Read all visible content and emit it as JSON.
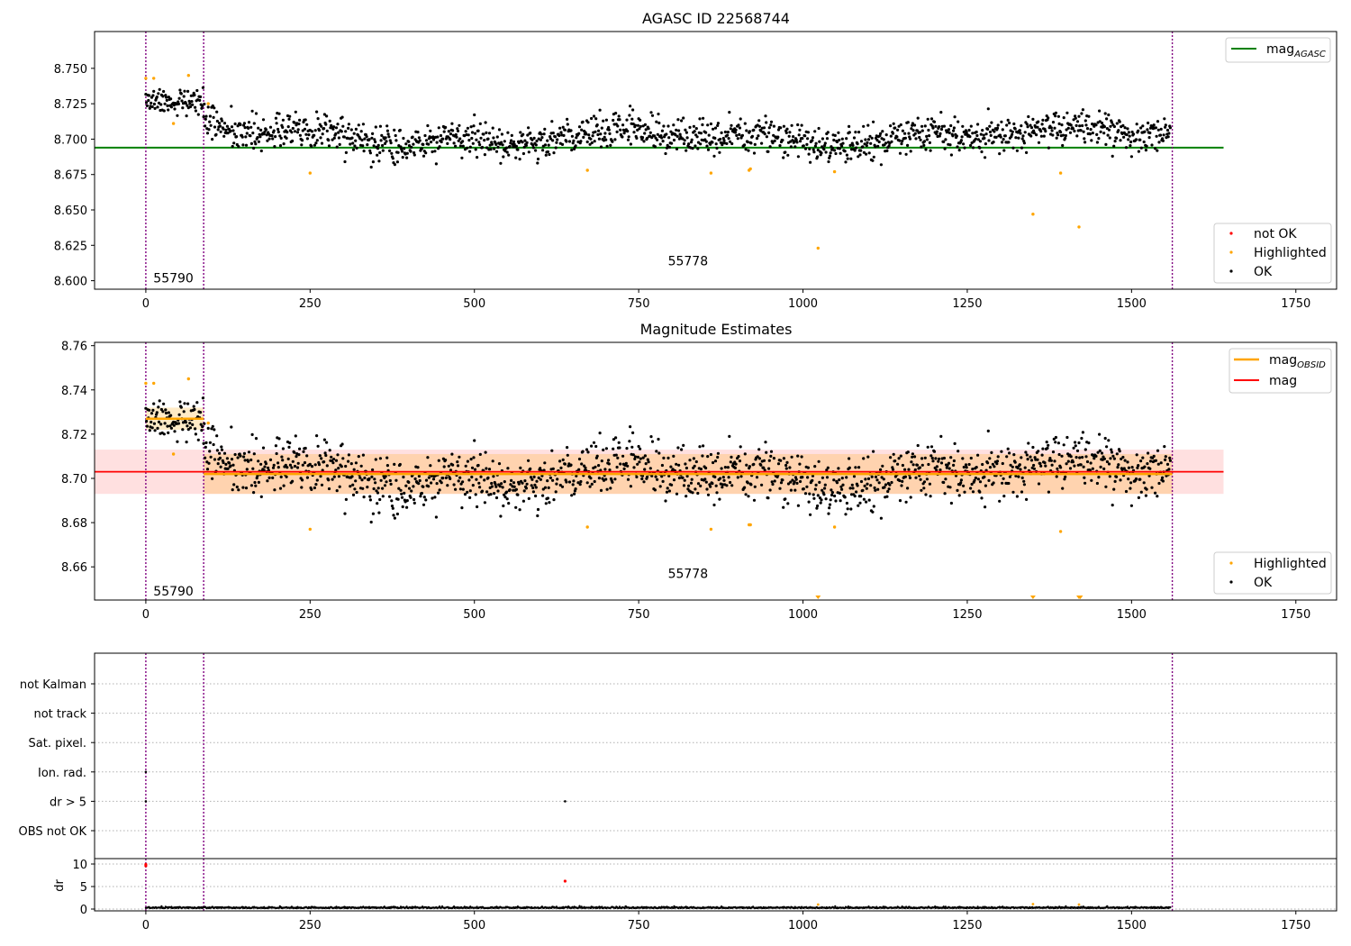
{
  "chart_data": [
    {
      "type": "scatter",
      "title": "AGASC ID 22568744",
      "xlabel": "",
      "ylabel": "",
      "xlim": [
        -78,
        1812
      ],
      "ylim": [
        8.594,
        8.776
      ],
      "x_ticks": [
        0,
        250,
        500,
        750,
        1000,
        1250,
        1500,
        1750
      ],
      "y_ticks": [
        8.6,
        8.625,
        8.65,
        8.675,
        8.7,
        8.725,
        8.75
      ],
      "y_tick_labels": [
        "8.600",
        "8.625",
        "8.650",
        "8.675",
        "8.700",
        "8.725",
        "8.750"
      ],
      "grid": false,
      "reference_line": {
        "name": "mag_AGASC",
        "y": 8.694,
        "x_range": [
          -78,
          1640
        ],
        "color": "#008000"
      },
      "obsid_boundaries": [
        0,
        88,
        1562
      ],
      "obsid_labels": [
        {
          "text": "55790",
          "x": 42,
          "y": 8.602
        },
        {
          "text": "55778",
          "x": 825,
          "y": 8.614
        }
      ],
      "legends": [
        {
          "placement": "top-right",
          "entries": [
            {
              "label": "mag",
              "sub": "AGASC",
              "color": "#008000",
              "kind": "line"
            }
          ]
        },
        {
          "placement": "bottom-right",
          "entries": [
            {
              "label": "not OK",
              "color": "#ff0000",
              "kind": "marker"
            },
            {
              "label": "Highlighted",
              "color": "#ffa500",
              "kind": "marker"
            },
            {
              "label": "OK",
              "color": "#000000",
              "kind": "marker"
            }
          ]
        }
      ],
      "series": [
        {
          "name": "Highlighted",
          "color": "#ffa500",
          "x": [
            0,
            12,
            42,
            65,
            95,
            250,
            672,
            860,
            918,
            920,
            1023,
            1048,
            1350,
            1392,
            1420
          ],
          "y": [
            8.743,
            8.743,
            8.711,
            8.745,
            8.725,
            8.676,
            8.678,
            8.676,
            8.678,
            8.679,
            8.623,
            8.677,
            8.647,
            8.676,
            8.638
          ]
        },
        {
          "name": "OK",
          "color": "#000000",
          "generated": true,
          "n": 1560
        }
      ]
    },
    {
      "type": "scatter",
      "title": "Magnitude Estimates",
      "xlabel": "",
      "ylabel": "",
      "xlim": [
        -78,
        1812
      ],
      "ylim": [
        8.645,
        8.7615
      ],
      "x_ticks": [
        0,
        250,
        500,
        750,
        1000,
        1250,
        1500,
        1750
      ],
      "y_ticks": [
        8.66,
        8.68,
        8.7,
        8.72,
        8.74,
        8.76
      ],
      "y_tick_labels": [
        "8.66",
        "8.68",
        "8.70",
        "8.72",
        "8.74",
        "8.76"
      ],
      "grid": false,
      "mag_line": {
        "name": "mag",
        "y": 8.703,
        "band": [
          8.693,
          8.713
        ],
        "x_range": [
          -78,
          1640
        ],
        "color": "#ff0000"
      },
      "mag_obsid_segments": [
        {
          "x": [
            0,
            88
          ],
          "y": 8.727,
          "band": [
            8.722,
            8.732
          ]
        },
        {
          "x": [
            88,
            1562
          ],
          "y": 8.702,
          "band": [
            8.693,
            8.711
          ]
        }
      ],
      "obsid_boundaries": [
        0,
        88,
        1562
      ],
      "obsid_labels": [
        {
          "text": "55790",
          "x": 42,
          "y": 8.649
        },
        {
          "text": "55778",
          "x": 825,
          "y": 8.657
        }
      ],
      "legends": [
        {
          "placement": "top-right",
          "entries": [
            {
              "label": "mag",
              "sub": "OBSID",
              "color": "#ffa500",
              "kind": "line"
            },
            {
              "label": "mag",
              "color": "#ff0000",
              "kind": "line"
            }
          ]
        },
        {
          "placement": "bottom-right",
          "entries": [
            {
              "label": "Highlighted",
              "color": "#ffa500",
              "kind": "marker"
            },
            {
              "label": "OK",
              "color": "#000000",
              "kind": "marker"
            }
          ]
        }
      ],
      "series": [
        {
          "name": "Highlighted",
          "color": "#ffa500",
          "x": [
            0,
            12,
            42,
            65,
            95,
            250,
            672,
            860,
            918,
            920,
            1048,
            1392
          ],
          "y": [
            8.743,
            8.743,
            8.711,
            8.745,
            8.725,
            8.677,
            8.678,
            8.677,
            8.679,
            8.679,
            8.678,
            8.676
          ]
        },
        {
          "name": "Highlighted (off scale)",
          "color": "#ffa500",
          "marker": "triangle-down",
          "x": [
            1023,
            1350,
            1420,
            1422
          ],
          "y": [
            8.645,
            8.645,
            8.645,
            8.645
          ]
        },
        {
          "name": "OK",
          "color": "#000000",
          "generated": true,
          "n": 1560
        }
      ]
    },
    {
      "type": "scatter",
      "title": "",
      "ylabel": "",
      "xlim": [
        -78,
        1812
      ],
      "categories": [
        "not Kalman",
        "not track",
        "Sat. pixel.",
        "Ion. rad.",
        "dr > 5",
        "OBS not OK"
      ],
      "grid": true,
      "obsid_boundaries": [
        0,
        88,
        1562
      ],
      "flag_points": [
        {
          "category": "Ion. rad.",
          "x": 0
        },
        {
          "category": "dr > 5",
          "x": 0
        },
        {
          "category": "dr > 5",
          "x": 638
        }
      ]
    },
    {
      "type": "scatter",
      "title": "",
      "ylabel": "dr",
      "xlim": [
        -78,
        1812
      ],
      "ylim": [
        -0.4,
        11.2
      ],
      "x_ticks": [
        0,
        250,
        500,
        750,
        1000,
        1250,
        1500,
        1750
      ],
      "y_ticks": [
        0,
        5,
        10
      ],
      "y_tick_labels": [
        "0",
        "5",
        "10"
      ],
      "grid": true,
      "obsid_boundaries": [
        0,
        88,
        1562
      ],
      "series": [
        {
          "name": "not OK",
          "color": "#ff0000",
          "x": [
            0,
            0,
            638
          ],
          "y": [
            9.6,
            9.9,
            6.2
          ]
        },
        {
          "name": "Highlighted",
          "color": "#ffa500",
          "x": [
            1023,
            1350,
            1420
          ],
          "y": [
            1.0,
            1.1,
            1.0
          ]
        },
        {
          "name": "OK",
          "color": "#000000",
          "generated": true,
          "n": 1560
        }
      ]
    }
  ]
}
